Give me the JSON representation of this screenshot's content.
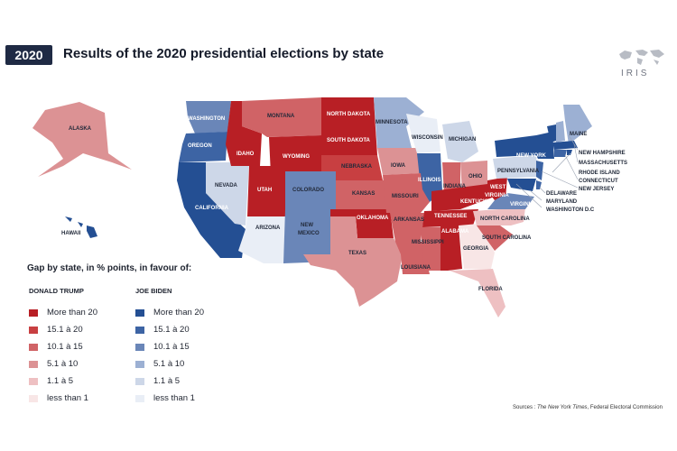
{
  "header": {
    "year": "2020",
    "title": "Results of the 2020 presidential elections by state",
    "logo_text": "IRIS"
  },
  "legend": {
    "title": "Gap by state, in % points, in favour of:",
    "trump": {
      "heading": "DONALD TRUMP",
      "items": [
        {
          "label": "More than 20",
          "color": "#b81f25"
        },
        {
          "label": "15.1 à 20",
          "color": "#c83f41"
        },
        {
          "label": "10.1 à 15",
          "color": "#d06366"
        },
        {
          "label": "5.1 à 10",
          "color": "#dc9294"
        },
        {
          "label": "1.1 à 5",
          "color": "#eec0c2"
        },
        {
          "label": "less than 1",
          "color": "#f8e6e6"
        }
      ]
    },
    "biden": {
      "heading": "JOE BIDEN",
      "items": [
        {
          "label": "More than 20",
          "color": "#244f93"
        },
        {
          "label": "15.1 à 20",
          "color": "#3d64a4"
        },
        {
          "label": "10.1 à 15",
          "color": "#6a86b8"
        },
        {
          "label": "5.1 à 10",
          "color": "#9cb0d3"
        },
        {
          "label": "1.1 à 5",
          "color": "#cdd7e8"
        },
        {
          "label": "less than 1",
          "color": "#e9eef6"
        }
      ]
    }
  },
  "states": {
    "alaska": "ALASKA",
    "hawaii": "HAWAII",
    "washington": "WASHINGTON",
    "oregon": "OREGON",
    "california": "CALIFORNIA",
    "nevada": "NEVADA",
    "idaho": "IDAHO",
    "montana": "MONTANA",
    "wyoming": "WYOMING",
    "utah": "UTAH",
    "arizona": "ARIZONA",
    "colorado": "COLORADO",
    "new_mexico_1": "NEW",
    "new_mexico_2": "MEXICO",
    "north_dakota": "NORTH DAKOTA",
    "south_dakota": "SOUTH DAKOTA",
    "nebraska": "NEBRASKA",
    "kansas": "KANSAS",
    "oklahoma": "OKLAHOMA",
    "texas": "TEXAS",
    "minnesota": "MINNESOTA",
    "iowa": "IOWA",
    "missouri": "MISSOURI",
    "arkansas": "ARKANSAS",
    "louisiana": "LOUISIANA",
    "wisconsin": "WISCONSIN",
    "illinois": "ILLINOIS",
    "michigan": "MICHIGAN",
    "indiana": "INDIANA",
    "ohio": "OHIO",
    "kentucky": "KENTUCKY",
    "tennessee": "TENNESSEE",
    "mississippi": "MISSISSIPPI",
    "alabama": "ALABAMA",
    "georgia": "GEORGIA",
    "florida": "FLORIDA",
    "south_carolina": "SOUTH CAROLINA",
    "north_carolina": "NORTH CAROLINA",
    "virginia": "VIRGINIA",
    "west_virginia_1": "WEST",
    "west_virginia_2": "VIRGINIA",
    "pennsylvania": "PENNSYLVANIA",
    "new_york": "NEW YORK",
    "maine": "MAINE",
    "new_hampshire": "NEW HAMPSHIRE",
    "massachusetts": "MASSACHUSETTS",
    "rhode_island": "RHODE ISLAND",
    "connecticut": "CONNECTICUT",
    "new_jersey": "NEW JERSEY",
    "delaware": "DELAWARE",
    "maryland": "MARYLAND",
    "washington_dc": "WASHINGTON D.C"
  },
  "source": {
    "prefix": "Sources : ",
    "publication": "The New York Times",
    "rest": ", Federal Electoral Commission"
  }
}
